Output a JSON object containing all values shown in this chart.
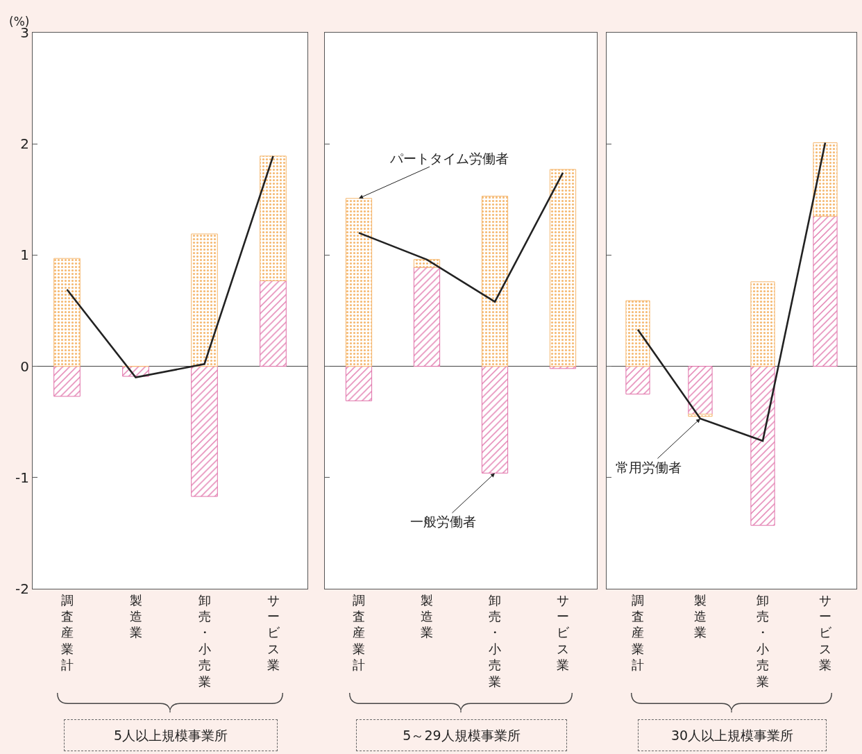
{
  "chart_data": [
    {
      "type": "bar",
      "stacked": true,
      "ylabel": "(%)",
      "xlabel": "5人以上規模事業所",
      "categories": [
        "調査産業計",
        "製造業",
        "卸売・小売業",
        "サービス業"
      ],
      "ylim": [
        -2,
        3
      ],
      "yticks": [
        -2,
        -1,
        0,
        1,
        2,
        3
      ],
      "series": [
        {
          "color": "#e070a8",
          "values": [
            -0.27,
            -0.09,
            -1.17,
            0.77
          ]
        },
        {
          "color": "#f5b870",
          "values": [
            0.97,
            0,
            1.19,
            1.12
          ]
        },
        {
          "type": "line",
          "color": "#222222",
          "values": [
            0.69,
            -0.1,
            0.02,
            1.89
          ]
        }
      ]
    },
    {
      "type": "bar",
      "stacked": true,
      "xlabel": "5～29人規模事業所",
      "tick_labels": "x",
      "categories": [
        "調査産業計",
        "製造業",
        "卸売・小売業",
        "サービス業"
      ],
      "ylim": [
        -2,
        3
      ],
      "yticks": [
        -2,
        -1,
        0,
        1,
        2,
        3
      ],
      "annotations": [
        {
          "text": "パートタイム労働者",
          "x": "調査産業計",
          "y": 1.51
        },
        {
          "text": "一般労働者",
          "x": "卸売・小売業",
          "y": -0.96
        }
      ],
      "series": [
        {
          "color": "#e070a8",
          "values": [
            -0.31,
            0.89,
            -0.96,
            -0.02
          ]
        },
        {
          "color": "#f5b870",
          "values": [
            1.51,
            0.07,
            1.53,
            1.77
          ]
        },
        {
          "type": "line",
          "color": "#222222",
          "values": [
            1.2,
            0.96,
            0.58,
            1.74
          ]
        }
      ]
    },
    {
      "type": "bar",
      "stacked": true,
      "xlabel": "30人以上規模事業所",
      "tick_labels": "x",
      "categories": [
        "調査産業計",
        "製造業",
        "卸売・小売業",
        "サービス業"
      ],
      "ylim": [
        -2,
        3
      ],
      "yticks": [
        -2,
        -1,
        0,
        1,
        2,
        3
      ],
      "annotations": [
        {
          "text": "常用労働者",
          "x": "製造業",
          "y": -0.47
        }
      ],
      "series": [
        {
          "color": "#e070a8",
          "values": [
            -0.25,
            -0.43,
            -1.43,
            1.35
          ]
        },
        {
          "color": "#f5b870",
          "values": [
            0.59,
            -0.02,
            0.76,
            0.66
          ]
        },
        {
          "type": "line",
          "color": "#222222",
          "values": [
            0.33,
            -0.47,
            -0.67,
            2.01
          ]
        }
      ]
    }
  ]
}
